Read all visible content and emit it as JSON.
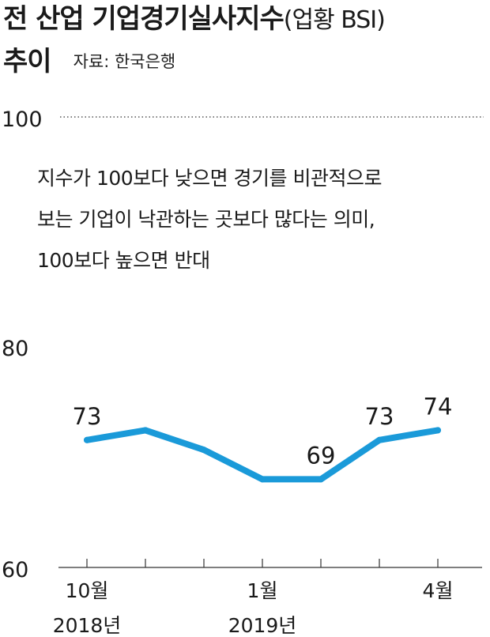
{
  "title": {
    "main": "전 산업 기업경기실사지수",
    "paren": "(업황 BSI)",
    "line2": "추이",
    "source": "자료: 한국은행"
  },
  "note_lines": [
    "지수가 100보다 낮으면 경기를 비관적으로",
    "보는 기업이 낙관하는 곳보다 많다는 의미,",
    "100보다 높으면 반대"
  ],
  "chart_data": {
    "type": "line",
    "x": [
      "2018-10",
      "2018-11",
      "2018-12",
      "2019-01",
      "2019-02",
      "2019-03",
      "2019-04"
    ],
    "values": [
      73,
      74,
      72,
      69,
      69,
      73,
      74
    ],
    "data_labels": [
      {
        "index": 0,
        "text": "73"
      },
      {
        "index": 4,
        "text": "69"
      },
      {
        "index": 5,
        "text": "73"
      },
      {
        "index": 6,
        "text": "74"
      }
    ],
    "y_ticks": [
      "60",
      "80",
      "100"
    ],
    "x_tick_labels": [
      {
        "index": 0,
        "line1": "10월",
        "line2": "2018년"
      },
      {
        "index": 3,
        "line1": "1월",
        "line2": "2019년"
      },
      {
        "index": 6,
        "line1": "4월",
        "line2": ""
      }
    ],
    "ylim": [
      60,
      100
    ],
    "reference_line": 100,
    "line_color": "#1a9ad9",
    "grid": false
  }
}
